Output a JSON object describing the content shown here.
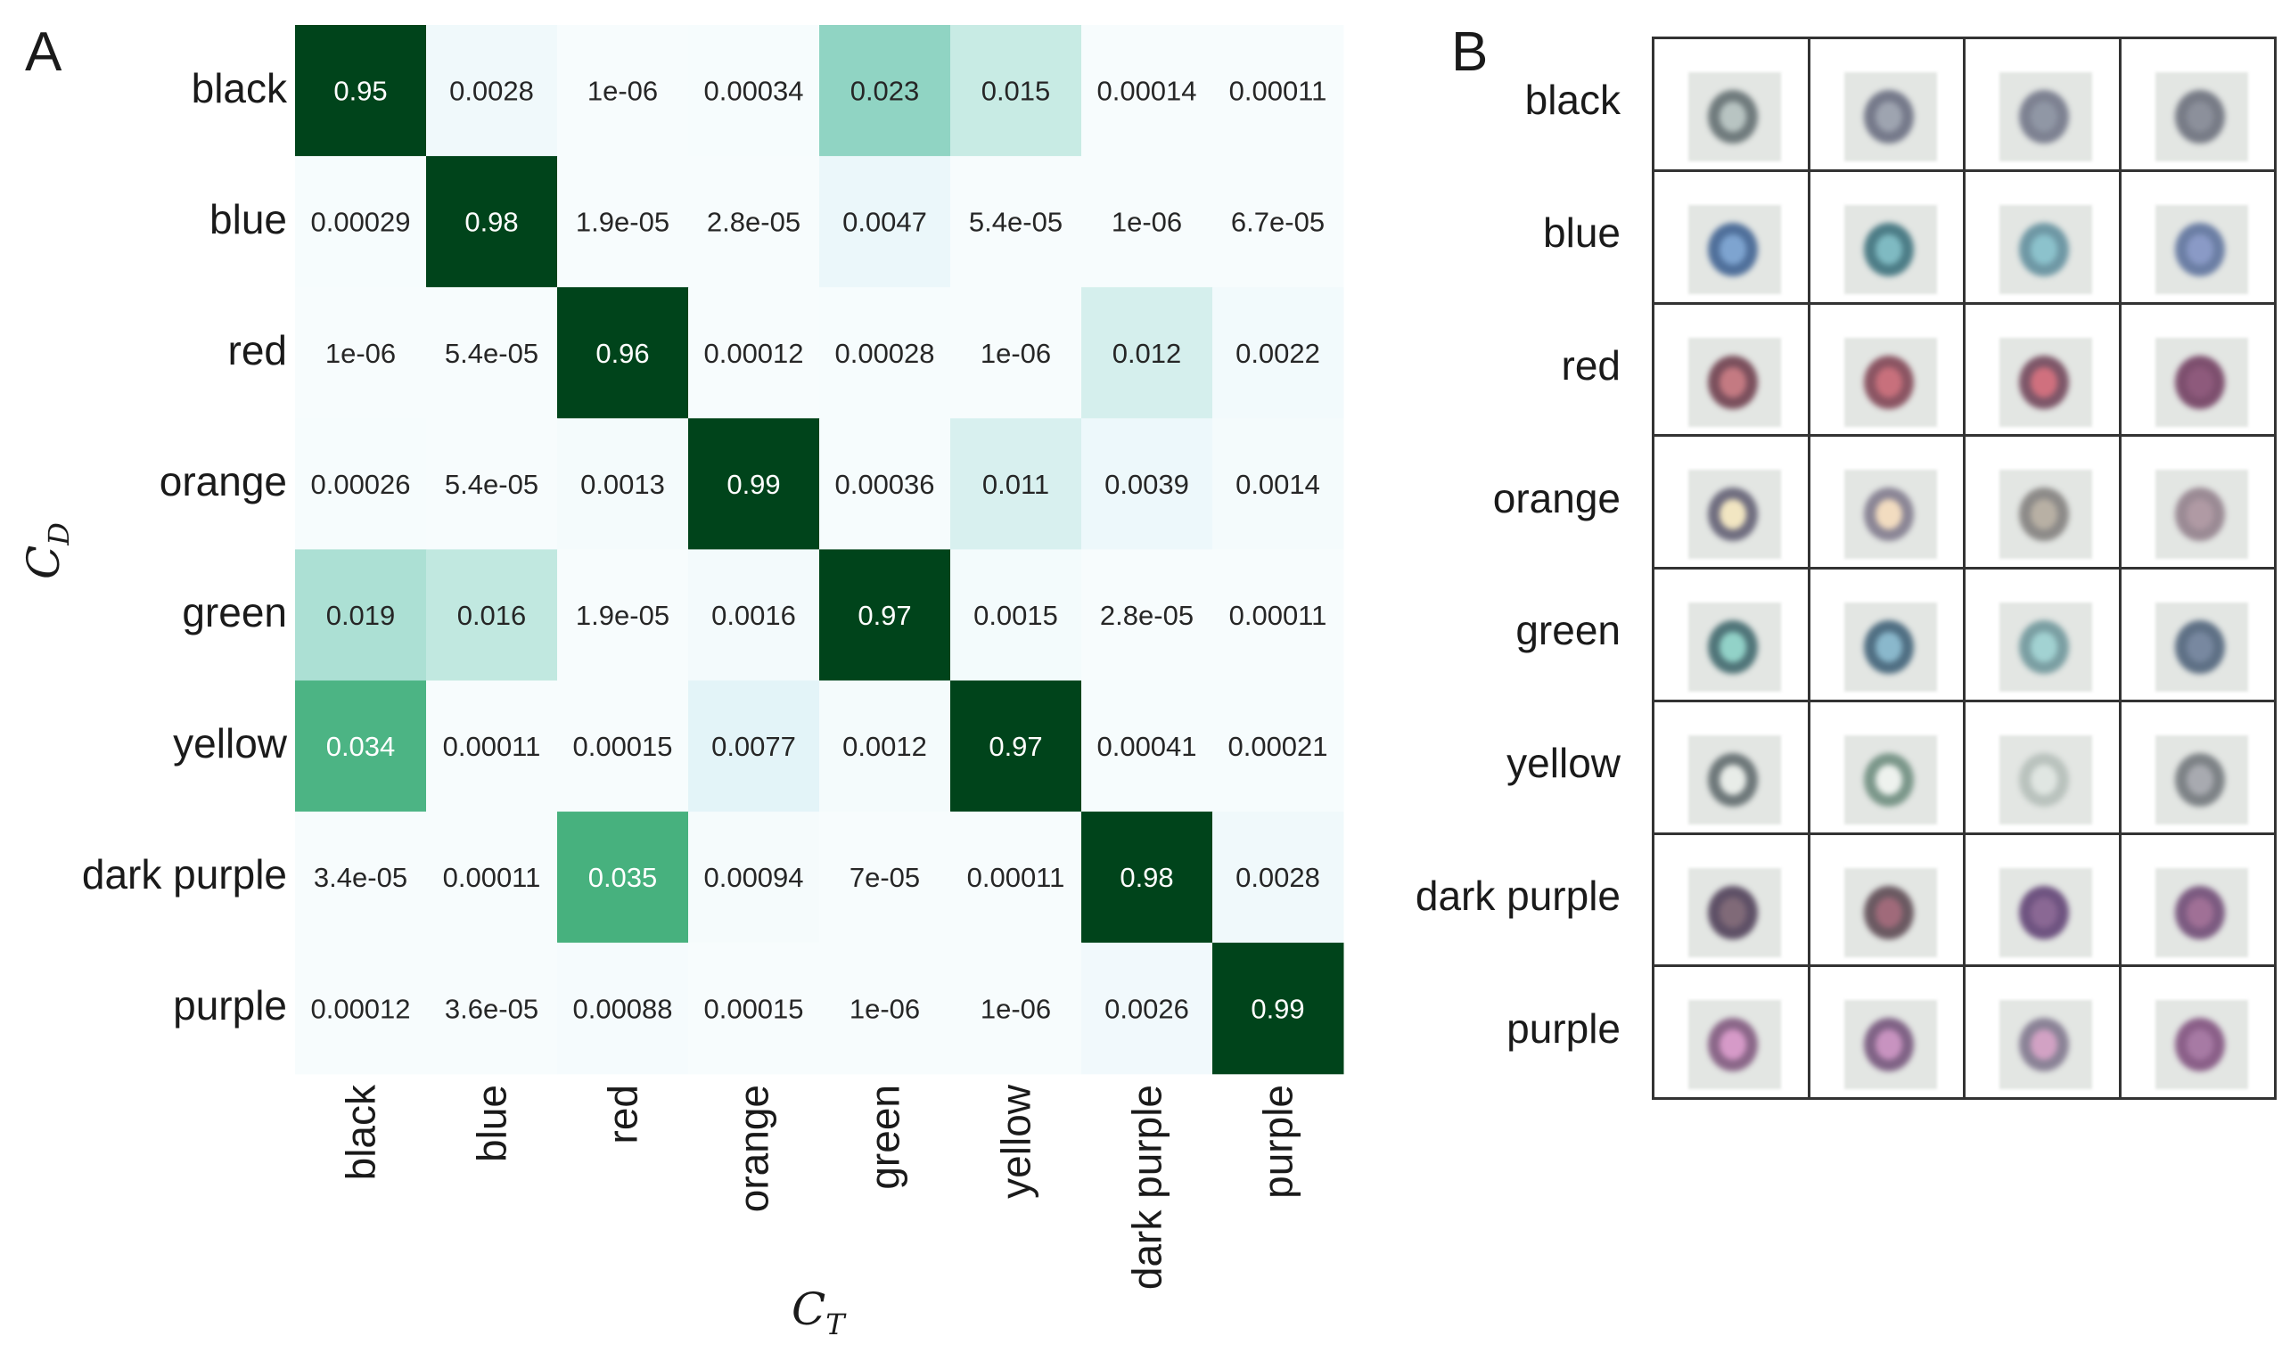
{
  "panel_a": {
    "letter": "A"
  },
  "panel_b": {
    "letter": "B",
    "rows": [
      "black",
      "blue",
      "red",
      "orange",
      "green",
      "yellow",
      "dark purple",
      "purple"
    ],
    "ring_colors": [
      [
        "#6f7a7c",
        "#75798a",
        "#7d8191",
        "#777b86"
      ],
      [
        "#4f6f9a",
        "#4c7c86",
        "#6e97a4",
        "#6b7ea4"
      ],
      [
        "#7a4f5c",
        "#8a5462",
        "#7d5668",
        "#7d4f6e"
      ],
      [
        "#6f6d7f",
        "#8a8595",
        "#8c8a88",
        "#9a8a94"
      ],
      [
        "#4f7478",
        "#4f6e82",
        "#7a9ea2",
        "#5e7085"
      ],
      [
        "#6d7779",
        "#7a9689",
        "#b9c2bd",
        "#7d8286"
      ],
      [
        "#5e5066",
        "#6a5961",
        "#6e5380",
        "#7b5a80"
      ],
      [
        "#8a6688",
        "#7f6285",
        "#8a8296",
        "#8a5f88"
      ]
    ],
    "center_colors": [
      [
        "#b8c4c2",
        "#9ea4b0",
        "#9097a5",
        "#8c909b"
      ],
      [
        "#7ea4d0",
        "#7fbac2",
        "#8cc2cc",
        "#8a9ac6"
      ],
      [
        "#c47a82",
        "#c8707c",
        "#d0707e",
        "#8e5a7c"
      ],
      [
        "#f2e6c2",
        "#f2dcc0",
        "#b8b0a4",
        "#b09aa4"
      ],
      [
        "#92d2c8",
        "#8ab8cc",
        "#a2d2d2",
        "#7888a0"
      ],
      [
        "#e8ece8",
        "#eef2ee",
        "#e0e6e2",
        "#a8aab0"
      ],
      [
        "#806a78",
        "#a06a7a",
        "#8a6894",
        "#a07096"
      ],
      [
        "#d69ac8",
        "#c893c0",
        "#d2a2c4",
        "#a77aa4"
      ]
    ]
  },
  "chart_data": {
    "type": "heatmap",
    "xlabel": "C_T",
    "ylabel": "C_D",
    "xlabel_main": "C",
    "xlabel_sub": "T",
    "ylabel_main": "C",
    "ylabel_sub": "D",
    "x_categories": [
      "black",
      "blue",
      "red",
      "orange",
      "green",
      "yellow",
      "dark purple",
      "purple"
    ],
    "y_categories": [
      "black",
      "blue",
      "red",
      "orange",
      "green",
      "yellow",
      "dark purple",
      "purple"
    ],
    "colormap": "BuGn",
    "low_color": "#f5fafd",
    "high_color": "#00441b",
    "values": [
      [
        "0.95",
        "0.0028",
        "1e-06",
        "0.00034",
        "0.023",
        "0.015",
        "0.00014",
        "0.00011"
      ],
      [
        "0.00029",
        "0.98",
        "1.9e-05",
        "2.8e-05",
        "0.0047",
        "5.4e-05",
        "1e-06",
        "6.7e-05"
      ],
      [
        "1e-06",
        "5.4e-05",
        "0.96",
        "0.00012",
        "0.00028",
        "1e-06",
        "0.012",
        "0.0022"
      ],
      [
        "0.00026",
        "5.4e-05",
        "0.0013",
        "0.99",
        "0.00036",
        "0.011",
        "0.0039",
        "0.0014"
      ],
      [
        "0.019",
        "0.016",
        "1.9e-05",
        "0.0016",
        "0.97",
        "0.0015",
        "2.8e-05",
        "0.00011"
      ],
      [
        "0.034",
        "0.00011",
        "0.00015",
        "0.0077",
        "0.0012",
        "0.97",
        "0.00041",
        "0.00021"
      ],
      [
        "3.4e-05",
        "0.00011",
        "0.035",
        "0.00094",
        "7e-05",
        "0.00011",
        "0.98",
        "0.0028"
      ],
      [
        "0.00012",
        "3.6e-05",
        "0.00088",
        "0.00015",
        "1e-06",
        "1e-06",
        "0.0026",
        "0.99"
      ]
    ]
  }
}
